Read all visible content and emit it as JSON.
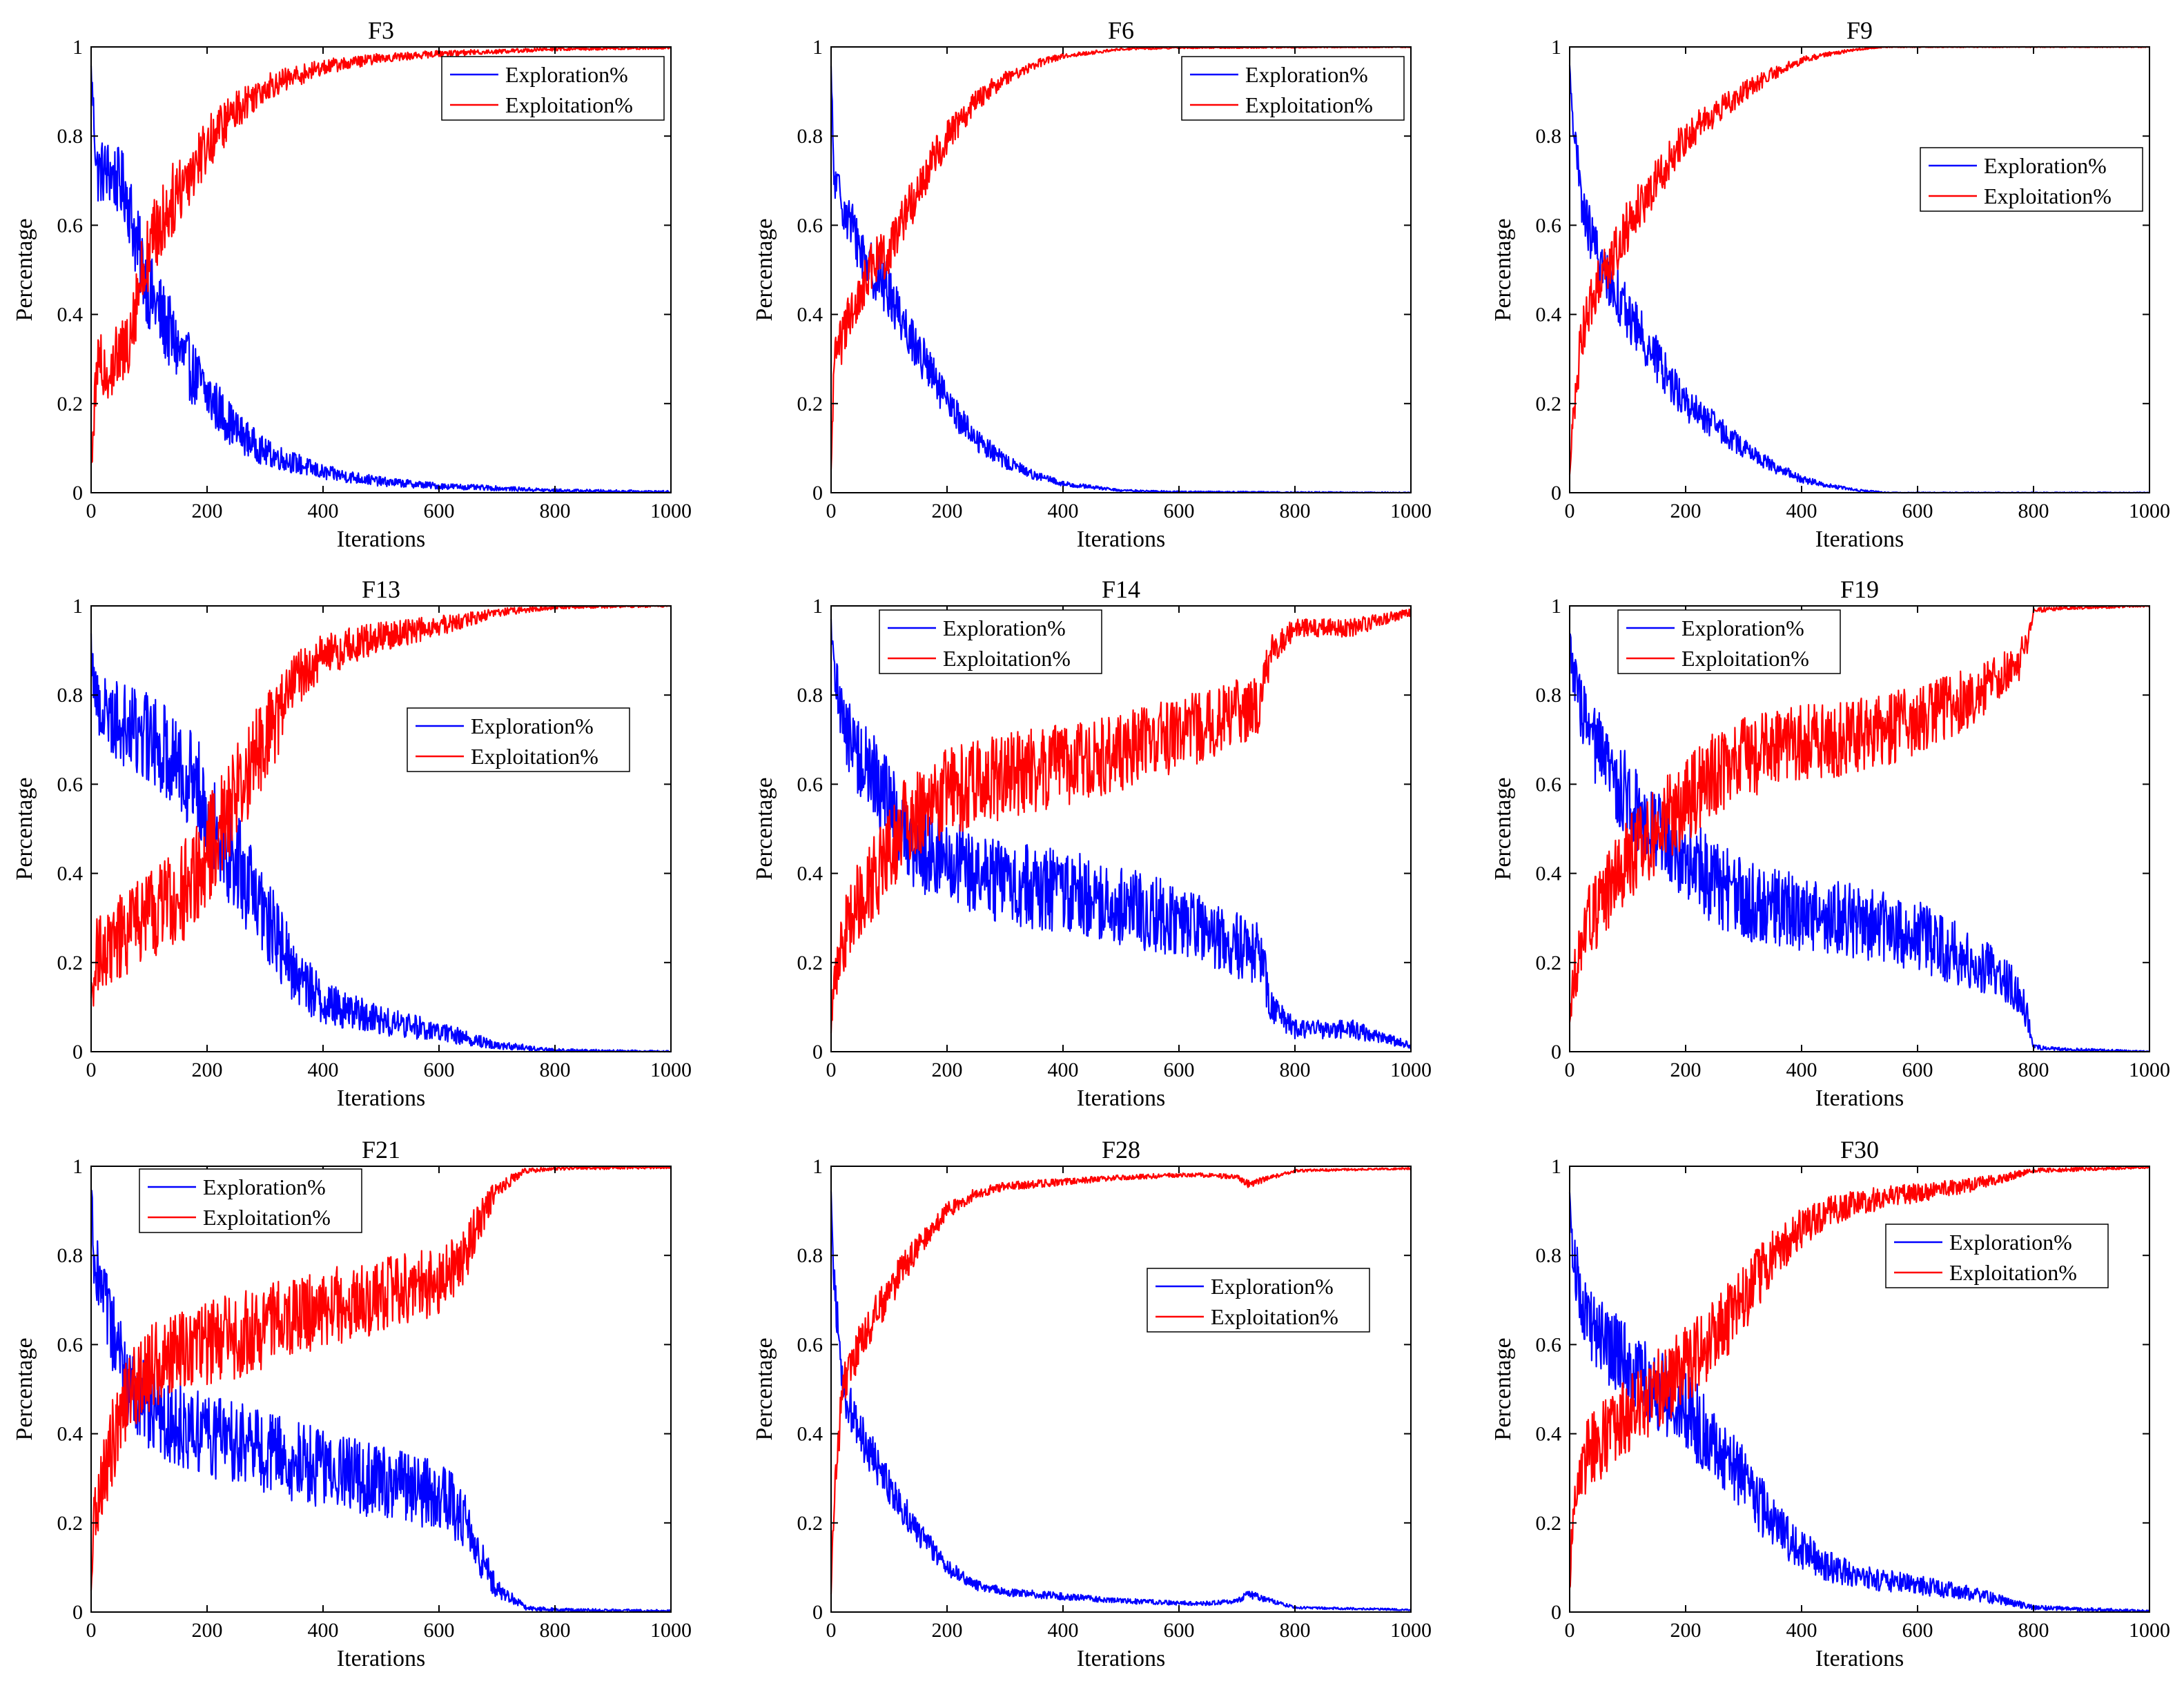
{
  "figure": {
    "layout": "3x3 grid of subplots"
  },
  "colors": {
    "exploration": "#0000ff",
    "exploitation": "#ff0000",
    "axis": "#000000",
    "background": "#ffffff"
  },
  "chart_data": [
    {
      "type": "line",
      "title": "F3",
      "xlabel": "Iterations",
      "ylabel": "Percentage",
      "xlim": [
        0,
        1000
      ],
      "ylim": [
        0,
        1
      ],
      "xticks": [
        "0",
        "200",
        "400",
        "600",
        "800",
        "1000"
      ],
      "yticks": [
        "0",
        "0.2",
        "0.4",
        "0.6",
        "0.8",
        "1"
      ],
      "legend": {
        "position": "top-right",
        "entries": [
          "Exploration%",
          "Exploitation%"
        ]
      },
      "series": [
        {
          "name": "Exploration%",
          "color": "#0000ff",
          "x": [
            0,
            10,
            30,
            60,
            80,
            100,
            150,
            200,
            250,
            300,
            400,
            500,
            600,
            700,
            800,
            1000
          ],
          "y": [
            0.95,
            0.72,
            0.72,
            0.68,
            0.55,
            0.45,
            0.32,
            0.22,
            0.14,
            0.09,
            0.045,
            0.025,
            0.015,
            0.01,
            0.005,
            0.002
          ],
          "noise": 0.09
        },
        {
          "name": "Exploitation%",
          "color": "#ff0000",
          "x": [
            0,
            10,
            30,
            60,
            80,
            100,
            150,
            200,
            250,
            300,
            400,
            500,
            600,
            700,
            800,
            1000
          ],
          "y": [
            0.05,
            0.28,
            0.28,
            0.32,
            0.45,
            0.55,
            0.68,
            0.78,
            0.86,
            0.91,
            0.955,
            0.975,
            0.985,
            0.99,
            0.995,
            0.998
          ],
          "noise": 0.09
        }
      ]
    },
    {
      "type": "line",
      "title": "F6",
      "xlabel": "Iterations",
      "ylabel": "Percentage",
      "xlim": [
        0,
        1000
      ],
      "ylim": [
        0,
        1
      ],
      "xticks": [
        "0",
        "200",
        "400",
        "600",
        "800",
        "1000"
      ],
      "yticks": [
        "0",
        "0.2",
        "0.4",
        "0.6",
        "0.8",
        "1"
      ],
      "legend": {
        "position": "top-right",
        "entries": [
          "Exploration%",
          "Exploitation%"
        ]
      },
      "series": [
        {
          "name": "Exploration%",
          "color": "#0000ff",
          "x": [
            0,
            5,
            20,
            50,
            70,
            100,
            150,
            200,
            250,
            300,
            350,
            400,
            500,
            600,
            1000
          ],
          "y": [
            0.95,
            0.7,
            0.65,
            0.55,
            0.5,
            0.45,
            0.32,
            0.2,
            0.12,
            0.07,
            0.04,
            0.02,
            0.005,
            0.002,
            0.0
          ],
          "noise": 0.06
        },
        {
          "name": "Exploitation%",
          "color": "#ff0000",
          "x": [
            0,
            5,
            20,
            50,
            70,
            100,
            150,
            200,
            250,
            300,
            350,
            400,
            500,
            600,
            1000
          ],
          "y": [
            0.05,
            0.3,
            0.35,
            0.45,
            0.5,
            0.55,
            0.68,
            0.8,
            0.88,
            0.93,
            0.96,
            0.98,
            0.995,
            0.998,
            1.0
          ],
          "noise": 0.06
        }
      ]
    },
    {
      "type": "line",
      "title": "F9",
      "xlabel": "Iterations",
      "ylabel": "Percentage",
      "xlim": [
        0,
        1000
      ],
      "ylim": [
        0,
        1
      ],
      "xticks": [
        "0",
        "200",
        "400",
        "600",
        "800",
        "1000"
      ],
      "yticks": [
        "0",
        "0.2",
        "0.4",
        "0.6",
        "0.8",
        "1"
      ],
      "legend": {
        "position": "top-right",
        "entries": [
          "Exploration%",
          "Exploitation%"
        ]
      },
      "series": [
        {
          "name": "Exploration%",
          "color": "#0000ff",
          "x": [
            0,
            5,
            20,
            50,
            80,
            100,
            150,
            200,
            250,
            300,
            350,
            400,
            450,
            500,
            550,
            1000
          ],
          "y": [
            0.95,
            0.85,
            0.65,
            0.52,
            0.45,
            0.4,
            0.3,
            0.2,
            0.15,
            0.1,
            0.06,
            0.03,
            0.015,
            0.005,
            0.0,
            0.0
          ],
          "noise": 0.06
        },
        {
          "name": "Exploitation%",
          "color": "#ff0000",
          "x": [
            0,
            5,
            20,
            50,
            80,
            100,
            150,
            200,
            250,
            300,
            350,
            400,
            450,
            500,
            550,
            1000
          ],
          "y": [
            0.05,
            0.15,
            0.35,
            0.48,
            0.55,
            0.6,
            0.7,
            0.8,
            0.85,
            0.9,
            0.94,
            0.97,
            0.985,
            0.995,
            1.0,
            1.0
          ],
          "noise": 0.06
        }
      ]
    },
    {
      "type": "line",
      "title": "F13",
      "xlabel": "Iterations",
      "ylabel": "Percentage",
      "xlim": [
        0,
        1000
      ],
      "ylim": [
        0,
        1
      ],
      "xticks": [
        "0",
        "200",
        "400",
        "600",
        "800",
        "1000"
      ],
      "yticks": [
        "0",
        "0.2",
        "0.4",
        "0.6",
        "0.8",
        "1"
      ],
      "legend": {
        "position": "right",
        "entries": [
          "Exploration%",
          "Exploitation%"
        ]
      },
      "series": [
        {
          "name": "Exploration%",
          "color": "#0000ff",
          "x": [
            0,
            10,
            50,
            100,
            150,
            200,
            250,
            300,
            350,
            400,
            450,
            500,
            600,
            700,
            800,
            1000
          ],
          "y": [
            0.9,
            0.78,
            0.74,
            0.7,
            0.66,
            0.55,
            0.42,
            0.3,
            0.18,
            0.11,
            0.09,
            0.07,
            0.045,
            0.015,
            0.003,
            0.0
          ],
          "noise": 0.12
        },
        {
          "name": "Exploitation%",
          "color": "#ff0000",
          "x": [
            0,
            10,
            50,
            100,
            150,
            200,
            250,
            300,
            350,
            400,
            450,
            500,
            600,
            700,
            800,
            1000
          ],
          "y": [
            0.1,
            0.22,
            0.26,
            0.3,
            0.34,
            0.45,
            0.58,
            0.7,
            0.82,
            0.89,
            0.91,
            0.93,
            0.955,
            0.985,
            0.997,
            1.0
          ],
          "noise": 0.12
        }
      ]
    },
    {
      "type": "line",
      "title": "F14",
      "xlabel": "Iterations",
      "ylabel": "Percentage",
      "xlim": [
        0,
        1000
      ],
      "ylim": [
        0,
        1
      ],
      "xticks": [
        "0",
        "200",
        "400",
        "600",
        "800",
        "1000"
      ],
      "yticks": [
        "0",
        "0.2",
        "0.4",
        "0.6",
        "0.8",
        "1"
      ],
      "legend": {
        "position": "top-left",
        "entries": [
          "Exploration%",
          "Exploitation%"
        ]
      },
      "series": [
        {
          "name": "Exploration%",
          "color": "#0000ff",
          "x": [
            0,
            5,
            30,
            80,
            130,
            200,
            300,
            400,
            500,
            600,
            700,
            740,
            760,
            800,
            850,
            900,
            950,
            1000
          ],
          "y": [
            0.95,
            0.85,
            0.7,
            0.6,
            0.48,
            0.42,
            0.38,
            0.36,
            0.33,
            0.29,
            0.24,
            0.22,
            0.1,
            0.05,
            0.05,
            0.05,
            0.03,
            0.015
          ],
          "noise": 0.1
        },
        {
          "name": "Exploitation%",
          "color": "#ff0000",
          "x": [
            0,
            5,
            30,
            80,
            130,
            200,
            300,
            400,
            500,
            600,
            700,
            740,
            760,
            800,
            850,
            900,
            950,
            1000
          ],
          "y": [
            0.05,
            0.15,
            0.3,
            0.4,
            0.52,
            0.58,
            0.62,
            0.64,
            0.67,
            0.71,
            0.76,
            0.78,
            0.9,
            0.95,
            0.95,
            0.95,
            0.97,
            0.985
          ],
          "noise": 0.1
        }
      ]
    },
    {
      "type": "line",
      "title": "F19",
      "xlabel": "Iterations",
      "ylabel": "Percentage",
      "xlim": [
        0,
        1000
      ],
      "ylim": [
        0,
        1
      ],
      "xticks": [
        "0",
        "200",
        "400",
        "600",
        "800",
        "1000"
      ],
      "yticks": [
        "0",
        "0.2",
        "0.4",
        "0.6",
        "0.8",
        "1"
      ],
      "legend": {
        "position": "top-left",
        "entries": [
          "Exploration%",
          "Exploitation%"
        ]
      },
      "series": [
        {
          "name": "Exploration%",
          "color": "#0000ff",
          "x": [
            0,
            5,
            30,
            80,
            150,
            250,
            300,
            400,
            500,
            600,
            700,
            770,
            790,
            800,
            850,
            1000
          ],
          "y": [
            0.95,
            0.85,
            0.72,
            0.6,
            0.5,
            0.38,
            0.34,
            0.31,
            0.29,
            0.26,
            0.2,
            0.14,
            0.08,
            0.01,
            0.005,
            0.0
          ],
          "noise": 0.1
        },
        {
          "name": "Exploitation%",
          "color": "#ff0000",
          "x": [
            0,
            5,
            30,
            80,
            150,
            250,
            300,
            400,
            500,
            600,
            700,
            770,
            790,
            800,
            850,
            1000
          ],
          "y": [
            0.05,
            0.15,
            0.28,
            0.4,
            0.5,
            0.62,
            0.66,
            0.69,
            0.71,
            0.74,
            0.8,
            0.86,
            0.92,
            0.99,
            0.995,
            1.0
          ],
          "noise": 0.1
        }
      ]
    },
    {
      "type": "line",
      "title": "F21",
      "xlabel": "Iterations",
      "ylabel": "Percentage",
      "xlim": [
        0,
        1000
      ],
      "ylim": [
        0,
        1
      ],
      "xticks": [
        "0",
        "200",
        "400",
        "600",
        "800",
        "1000"
      ],
      "yticks": [
        "0",
        "0.2",
        "0.4",
        "0.6",
        "0.8",
        "1"
      ],
      "legend": {
        "position": "top-left",
        "entries": [
          "Exploration%",
          "Exploitation%"
        ]
      },
      "series": [
        {
          "name": "Exploration%",
          "color": "#0000ff",
          "x": [
            0,
            5,
            30,
            60,
            100,
            200,
            300,
            400,
            500,
            600,
            640,
            660,
            700,
            750,
            800,
            1000
          ],
          "y": [
            0.95,
            0.8,
            0.65,
            0.52,
            0.45,
            0.4,
            0.36,
            0.32,
            0.29,
            0.26,
            0.22,
            0.15,
            0.05,
            0.01,
            0.005,
            0.002
          ],
          "noise": 0.1
        },
        {
          "name": "Exploitation%",
          "color": "#ff0000",
          "x": [
            0,
            5,
            30,
            60,
            100,
            200,
            300,
            400,
            500,
            600,
            640,
            660,
            700,
            750,
            800,
            1000
          ],
          "y": [
            0.05,
            0.2,
            0.35,
            0.48,
            0.55,
            0.6,
            0.64,
            0.68,
            0.71,
            0.74,
            0.78,
            0.85,
            0.95,
            0.99,
            0.995,
            0.998
          ],
          "noise": 0.1
        }
      ]
    },
    {
      "type": "line",
      "title": "F28",
      "xlabel": "Iterations",
      "ylabel": "Percentage",
      "xlim": [
        0,
        1000
      ],
      "ylim": [
        0,
        1
      ],
      "xticks": [
        "0",
        "200",
        "400",
        "600",
        "800",
        "1000"
      ],
      "yticks": [
        "0",
        "0.2",
        "0.4",
        "0.6",
        "0.8",
        "1"
      ],
      "legend": {
        "position": "right",
        "entries": [
          "Exploration%",
          "Exploitation%"
        ]
      },
      "series": [
        {
          "name": "Exploration%",
          "color": "#0000ff",
          "x": [
            0,
            5,
            20,
            50,
            100,
            150,
            200,
            250,
            300,
            400,
            500,
            600,
            650,
            700,
            720,
            800,
            1000
          ],
          "y": [
            0.95,
            0.75,
            0.5,
            0.4,
            0.28,
            0.18,
            0.1,
            0.06,
            0.045,
            0.035,
            0.025,
            0.02,
            0.02,
            0.025,
            0.04,
            0.01,
            0.005
          ],
          "noise": 0.05
        },
        {
          "name": "Exploitation%",
          "color": "#ff0000",
          "x": [
            0,
            5,
            20,
            50,
            100,
            150,
            200,
            250,
            300,
            400,
            500,
            600,
            650,
            700,
            720,
            800,
            1000
          ],
          "y": [
            0.05,
            0.25,
            0.5,
            0.6,
            0.72,
            0.82,
            0.9,
            0.94,
            0.955,
            0.965,
            0.975,
            0.98,
            0.98,
            0.975,
            0.96,
            0.99,
            0.995
          ],
          "noise": 0.05
        }
      ]
    },
    {
      "type": "line",
      "title": "F30",
      "xlabel": "Iterations",
      "ylabel": "Percentage",
      "xlim": [
        0,
        1000
      ],
      "ylim": [
        0,
        1
      ],
      "xticks": [
        "0",
        "200",
        "400",
        "600",
        "800",
        "1000"
      ],
      "yticks": [
        "0",
        "0.2",
        "0.4",
        "0.6",
        "0.8",
        "1"
      ],
      "legend": {
        "position": "right",
        "entries": [
          "Exploration%",
          "Exploitation%"
        ]
      },
      "series": [
        {
          "name": "Exploration%",
          "color": "#0000ff",
          "x": [
            0,
            5,
            30,
            80,
            150,
            200,
            250,
            300,
            350,
            400,
            450,
            500,
            600,
            700,
            800,
            1000
          ],
          "y": [
            0.95,
            0.8,
            0.65,
            0.58,
            0.5,
            0.45,
            0.38,
            0.3,
            0.2,
            0.14,
            0.1,
            0.08,
            0.06,
            0.04,
            0.01,
            0.002
          ],
          "noise": 0.09
        },
        {
          "name": "Exploitation%",
          "color": "#ff0000",
          "x": [
            0,
            5,
            30,
            80,
            150,
            200,
            250,
            300,
            350,
            400,
            450,
            500,
            600,
            700,
            800,
            1000
          ],
          "y": [
            0.05,
            0.2,
            0.35,
            0.42,
            0.5,
            0.55,
            0.62,
            0.7,
            0.8,
            0.86,
            0.9,
            0.92,
            0.94,
            0.96,
            0.99,
            0.998
          ],
          "noise": 0.09
        }
      ]
    }
  ]
}
